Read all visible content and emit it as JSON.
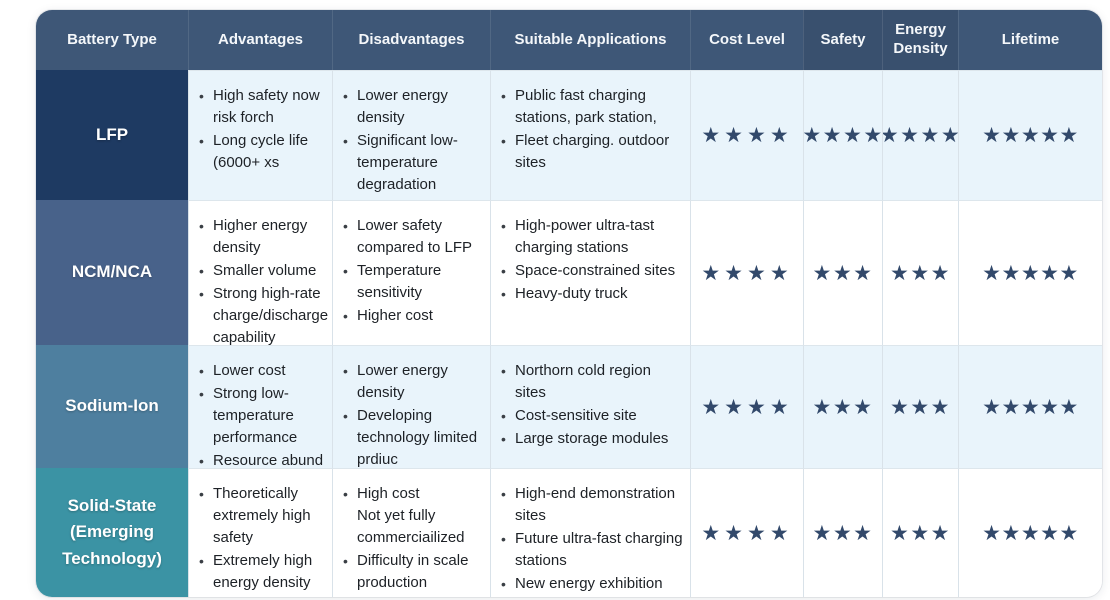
{
  "chart_data": {
    "type": "table",
    "columns": [
      "Battery Type",
      "Advantages",
      "Disadvantages",
      "Suitable Applications",
      "Cost Level",
      "Safety",
      "Energy Density",
      "Lifetime"
    ],
    "max_stars": 5,
    "rows": [
      {
        "battery_type": "LFP",
        "advantages": [
          "High safety now risk forch",
          "Long cycle life (6000+ xs"
        ],
        "disadvantages": [
          "Lower energy density",
          "Significant low-temperature degradation"
        ],
        "suitable_applications": [
          "Public fast charging stations, park station,",
          "Fleet charging. outdoor sites"
        ],
        "cost_level_stars": 4,
        "safety_stars": 4,
        "energy_density_stars": 4,
        "lifetime_stars": 5
      },
      {
        "battery_type": "NCM/NCA",
        "advantages": [
          "Higher energy density",
          "Smaller volume",
          "Strong high-rate charge/discharge capability"
        ],
        "disadvantages": [
          "Lower safety compared to LFP",
          "Temperature sensitivity",
          "Higher cost"
        ],
        "suitable_applications": [
          "High-power ultra-tast charging stations",
          "Space-constrained sites",
          "Heavy-duty truck"
        ],
        "cost_level_stars": 4,
        "safety_stars": 3,
        "energy_density_stars": 3,
        "lifetime_stars": 5
      },
      {
        "battery_type": "Sodium-Ion",
        "advantages": [
          "Lower cost",
          "Strong low-temperature performance",
          "Resource abund"
        ],
        "disadvantages": [
          "Lower energy density",
          "Developing technology limited prdiuc"
        ],
        "suitable_applications": [
          "Northorn cold region sites",
          "Cost-sensitive site",
          "Large storage modules"
        ],
        "cost_level_stars": 4,
        "safety_stars": 3,
        "energy_density_stars": 3,
        "lifetime_stars": 5
      },
      {
        "battery_type": "Solid-State (Emerging Technology)",
        "battery_type_display": "Solid-State\n(Emerging\nTechnology)",
        "advantages": [
          "Theoretically extremely high safety",
          "Extremely high energy density"
        ],
        "disadvantages": [
          "High cost\nNot yet fully commerciailized",
          "Difficulty in scale production"
        ],
        "suitable_applications": [
          "High-end demonstration sites",
          "Future ultra-fast charging stations",
          "New energy exhibition"
        ],
        "cost_level_stars": 4,
        "safety_stars": 3,
        "energy_density_stars": 3,
        "lifetime_stars": 5
      }
    ]
  },
  "star_glyph": "★",
  "colors": {
    "header_bg": "#3e5777",
    "header_bg_dark": "#39506e",
    "header_text": "#f4f7fa",
    "row_label_bgs": [
      "#1e3a62",
      "#48628a",
      "#4e7f9f",
      "#3b93a4"
    ],
    "row_bgs": [
      "#e9f4fb",
      "#ffffff",
      "#e9f4fb",
      "#ffffff"
    ],
    "star": "#32496b",
    "body_text": "#1d2126",
    "divider": "#d9e2e9"
  }
}
